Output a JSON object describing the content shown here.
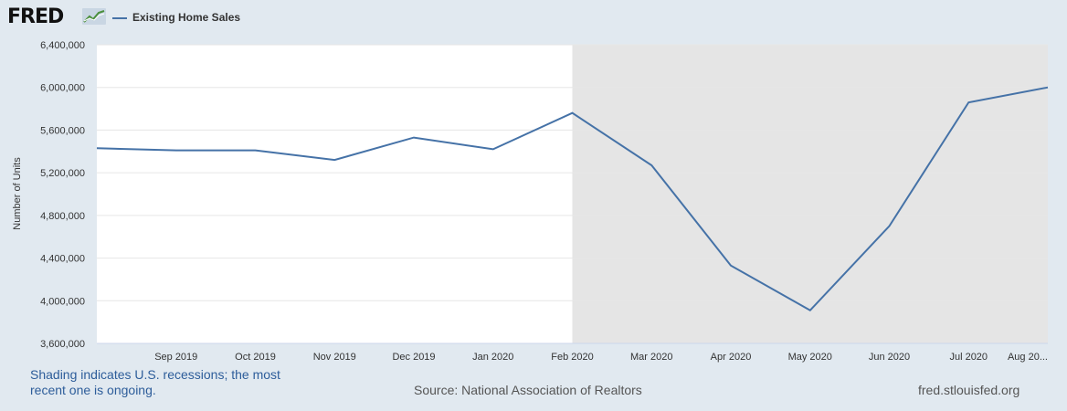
{
  "header": {
    "logo_text": "FRED",
    "logo_icon": "trend-graph-icon",
    "legend_label": "Existing Home Sales"
  },
  "colors": {
    "background": "#e1e9f0",
    "plot_background": "#ffffff",
    "recession_shade": "#e5e5e5",
    "series_line": "#4572a7"
  },
  "footer": {
    "recession_note": "Shading indicates U.S. recessions; the most recent one is ongoing.",
    "source": "Source: National Association of Realtors",
    "url": "fred.stlouisfed.org"
  },
  "chart_data": {
    "type": "line",
    "title": "",
    "xlabel": "",
    "ylabel": "Number of Units",
    "ylim": [
      3600000,
      6400000
    ],
    "y_ticks": [
      3600000,
      4000000,
      4400000,
      4800000,
      5200000,
      5600000,
      6000000,
      6400000
    ],
    "y_tick_labels": [
      "3,600,000",
      "4,000,000",
      "4,400,000",
      "4,800,000",
      "5,200,000",
      "5,600,000",
      "6,000,000",
      "6,400,000"
    ],
    "x_tick_labels": [
      "Sep 2019",
      "Oct 2019",
      "Nov 2019",
      "Dec 2019",
      "Jan 2020",
      "Feb 2020",
      "Mar 2020",
      "Apr 2020",
      "May 2020",
      "Jun 2020",
      "Jul 2020",
      "Aug 20..."
    ],
    "x_range": [
      "2019-08",
      "2020-08"
    ],
    "grid": true,
    "recession_shading": {
      "start": "2020-02",
      "end": "2020-08"
    },
    "series": [
      {
        "name": "Existing Home Sales",
        "x": [
          "2019-08",
          "2019-09",
          "2019-10",
          "2019-11",
          "2019-12",
          "2020-01",
          "2020-02",
          "2020-03",
          "2020-04",
          "2020-05",
          "2020-06",
          "2020-07",
          "2020-08"
        ],
        "values": [
          5430000,
          5410000,
          5410000,
          5320000,
          5530000,
          5420000,
          5760000,
          5270000,
          4330000,
          3910000,
          4700000,
          5860000,
          6000000
        ]
      }
    ]
  }
}
